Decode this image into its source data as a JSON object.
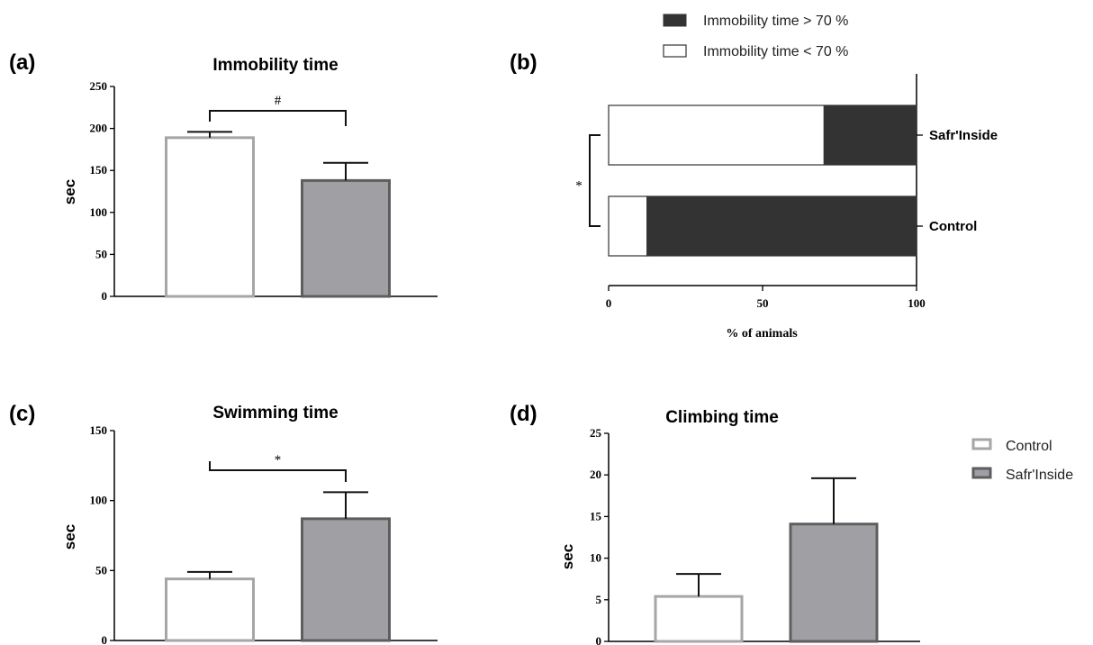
{
  "colors": {
    "control_fill": "#ffffff",
    "control_stroke": "#a6a6a6",
    "safr_fill": "#a09fa4",
    "safr_stroke": "#5e5e5e",
    "high_immobility": "#333333",
    "low_immobility": "#ffffff",
    "axis": "#000000"
  },
  "legend_groups": {
    "items": [
      {
        "label": "Control"
      },
      {
        "label": "Safr'Inside"
      }
    ]
  },
  "legend_immobility": {
    "items": [
      {
        "label": "Immobility time > 70 %"
      },
      {
        "label": "Immobility time < 70 %"
      }
    ]
  },
  "chart_data": [
    {
      "panel": "(a)",
      "type": "bar",
      "title": "Immobility time",
      "ylabel": "sec",
      "xlabel": "",
      "ylim": [
        0,
        250
      ],
      "yticks": [
        0,
        50,
        100,
        150,
        200,
        250
      ],
      "grid": false,
      "categories": [
        "Control",
        "Safr'Inside"
      ],
      "values": [
        189,
        138
      ],
      "errors": [
        7,
        21
      ],
      "significance": {
        "between": [
          0,
          1
        ],
        "label": "#"
      }
    },
    {
      "panel": "(b)",
      "type": "bar",
      "orientation": "horizontal-stacked",
      "title": "",
      "xlabel": "% of animals",
      "ylabel": "",
      "xlim": [
        0,
        100
      ],
      "xticks": [
        0,
        50,
        100
      ],
      "grid": false,
      "categories": [
        "Safr'Inside",
        "Control"
      ],
      "series": [
        {
          "name": "Immobility time < 70 %",
          "values": [
            70,
            12.5
          ]
        },
        {
          "name": "Immobility time > 70 %",
          "values": [
            30,
            87.5
          ]
        }
      ],
      "significance": {
        "between": [
          0,
          1
        ],
        "label": "*"
      }
    },
    {
      "panel": "(c)",
      "type": "bar",
      "title": "Swimming time",
      "ylabel": "sec",
      "xlabel": "",
      "ylim": [
        0,
        150
      ],
      "yticks": [
        0,
        50,
        100,
        150
      ],
      "grid": false,
      "categories": [
        "Control",
        "Safr'Inside"
      ],
      "values": [
        44,
        87
      ],
      "errors": [
        5,
        19
      ],
      "significance": {
        "between": [
          0,
          1
        ],
        "label": "*"
      }
    },
    {
      "panel": "(d)",
      "type": "bar",
      "title": "Climbing time",
      "ylabel": "sec",
      "xlabel": "",
      "ylim": [
        0,
        25
      ],
      "yticks": [
        0,
        5,
        10,
        15,
        20,
        25
      ],
      "grid": false,
      "categories": [
        "Control",
        "Safr'Inside"
      ],
      "values": [
        5.4,
        14.1
      ],
      "errors": [
        2.7,
        5.5
      ]
    }
  ]
}
